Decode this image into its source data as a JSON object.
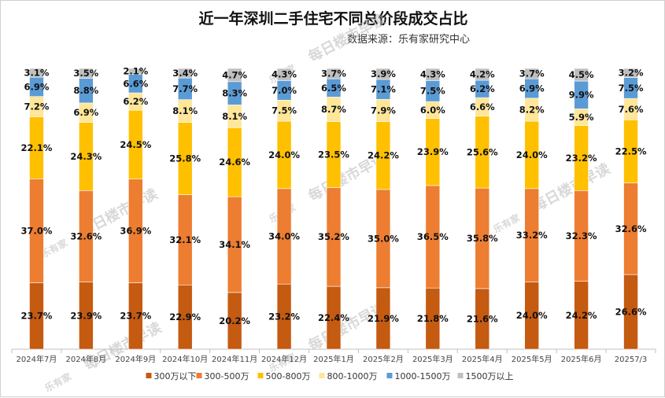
{
  "header": {
    "title": "近一年深圳二手住宅不同总价段成交占比",
    "subtitle": "数据来源：乐有家研究中心"
  },
  "watermark": {
    "text": "每日楼市早读",
    "logo_text": "乐有家"
  },
  "colors": {
    "300万以下": "#C55A11",
    "300-500万": "#ED7D31",
    "500-800万": "#FFC000",
    "800-1000万": "#FFE699",
    "1000-1500万": "#5B9BD5",
    "1500万以上": "#BFBFBF"
  },
  "chart_data": {
    "type": "bar",
    "stacked": true,
    "title": "近一年深圳二手住宅不同总价段成交占比",
    "subtitle": "数据来源：乐有家研究中心",
    "categories": [
      "2024年7月",
      "2024年8月",
      "2024年9月",
      "2024年10月",
      "2024年11月",
      "2024年12月",
      "2025年1月",
      "2025年2月",
      "2025年3月",
      "2025年4月",
      "2025年5月",
      "2025年6月",
      "20257/3"
    ],
    "ylim": [
      0,
      100
    ],
    "grid": false,
    "legend": "bottom",
    "series": [
      {
        "name": "300万以下",
        "values": [
          23.7,
          23.9,
          23.7,
          22.9,
          20.2,
          23.2,
          22.4,
          21.9,
          21.8,
          21.6,
          24.0,
          24.2,
          26.6
        ],
        "labels": [
          "23.7%",
          "23.9%",
          "23.7%",
          "22.9%",
          "20.2%",
          "23.2%",
          "22.4%",
          "21.9%",
          "21.8%",
          "21.6%",
          "24.0%",
          "24.2%",
          "26.6%"
        ]
      },
      {
        "name": "300-500万",
        "values": [
          37.0,
          32.6,
          36.9,
          32.1,
          34.1,
          34.0,
          35.2,
          35.0,
          36.5,
          35.8,
          33.2,
          32.3,
          32.6
        ],
        "labels": [
          "37.0%",
          "32.6%",
          "36.9%",
          "32.1%",
          "34.1%",
          "34.0%",
          "35.2%",
          "35.0%",
          "36.5%",
          "35.8%",
          "33.2%",
          "32.3%",
          "32.6%"
        ]
      },
      {
        "name": "500-800万",
        "values": [
          22.1,
          24.3,
          24.5,
          25.8,
          24.6,
          24.0,
          23.5,
          24.2,
          23.9,
          25.6,
          24.0,
          23.2,
          22.5
        ],
        "labels": [
          "22.1%",
          "24.3%",
          "24.5%",
          "25.8%",
          "24.6%",
          "24.0%",
          "23.5%",
          "24.2%",
          "23.9%",
          "25.6%",
          "24.0%",
          "23.2%",
          "22.5%"
        ]
      },
      {
        "name": "800-1000万",
        "values": [
          7.2,
          6.9,
          6.2,
          8.1,
          8.1,
          7.5,
          8.7,
          7.9,
          6.0,
          6.6,
          8.2,
          5.9,
          7.6
        ],
        "labels": [
          "7.2%",
          "6.9%",
          "6.2%",
          "8.1%",
          "8.1%",
          "7.5%",
          "8.7%",
          "7.9%",
          "6.0%",
          "6.6%",
          "8.2%",
          "5.9%",
          "7.6%"
        ]
      },
      {
        "name": "1000-1500万",
        "values": [
          6.9,
          8.8,
          6.6,
          7.7,
          8.3,
          7.0,
          6.5,
          7.1,
          7.5,
          6.2,
          6.9,
          9.9,
          7.5
        ],
        "labels": [
          "6.9%",
          "8.8%",
          "6.6%",
          "7.7%",
          "8.3%",
          "7.0%",
          "6.5%",
          "7.1%",
          "7.5%",
          "6.2%",
          "6.9%",
          "9.9%",
          "7.5%"
        ]
      },
      {
        "name": "1500万以上",
        "values": [
          3.1,
          3.5,
          2.1,
          3.4,
          4.7,
          4.3,
          3.7,
          3.9,
          4.3,
          4.2,
          3.7,
          4.5,
          3.2
        ],
        "labels": [
          "3.1%",
          "3.5%",
          "2.1%",
          "3.4%",
          "4.7%",
          "4.3%",
          "3.7%",
          "3.9%",
          "4.3%",
          "4.2%",
          "3.7%",
          "4.5%",
          "3.2%"
        ]
      }
    ]
  }
}
